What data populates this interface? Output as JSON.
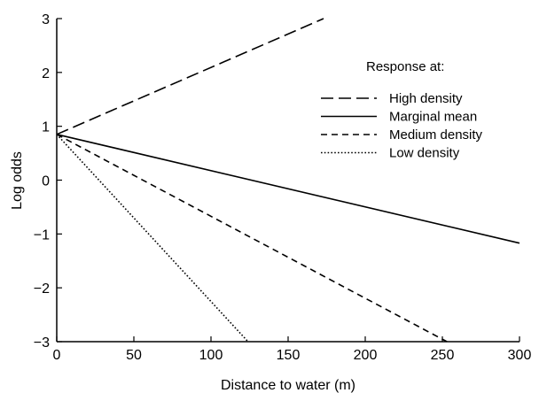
{
  "chart_data": {
    "type": "line",
    "xlabel": "Distance to water (m)",
    "ylabel": "Log odds",
    "xlim": [
      0,
      300
    ],
    "ylim": [
      -3,
      3
    ],
    "xticks": [
      0,
      50,
      100,
      150,
      200,
      250,
      300
    ],
    "yticks": [
      -3,
      -2,
      -1,
      0,
      1,
      2,
      3
    ],
    "ytick_labels": [
      "−3",
      "−2",
      "−1",
      "0",
      "1",
      "2",
      "3"
    ],
    "grid": false,
    "legend": {
      "title": "Response at:",
      "placement": "top-right"
    },
    "series": [
      {
        "name": "High density",
        "style": "long-dash",
        "x": [
          0,
          173
        ],
        "y": [
          0.85,
          3.0
        ]
      },
      {
        "name": "Marginal mean",
        "style": "solid",
        "x": [
          0,
          300
        ],
        "y": [
          0.85,
          -1.17
        ]
      },
      {
        "name": "Medium density",
        "style": "short-dash",
        "x": [
          0,
          253
        ],
        "y": [
          0.85,
          -3.0
        ]
      },
      {
        "name": "Low density",
        "style": "dotted",
        "x": [
          0,
          124
        ],
        "y": [
          0.85,
          -3.0
        ]
      }
    ]
  }
}
